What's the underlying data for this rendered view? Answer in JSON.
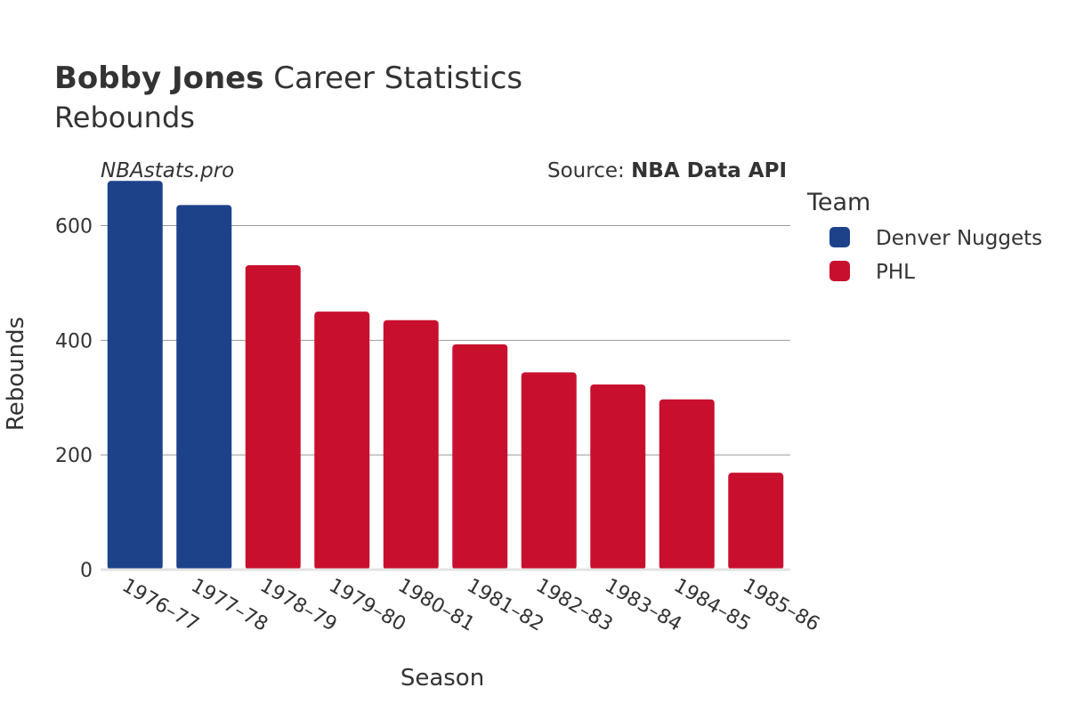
{
  "header": {
    "title_bold": "Bobby Jones",
    "title_rest": "Career Statistics",
    "subtitle": "Rebounds"
  },
  "watermark": "NBAstats.pro",
  "source": {
    "prefix": "Source: ",
    "name": "NBA Data API"
  },
  "legend": {
    "title": "Team",
    "entries": [
      {
        "label": "Denver Nuggets",
        "color": "#1d428a"
      },
      {
        "label": "PHL",
        "color": "#c8102e"
      }
    ]
  },
  "chart_data": {
    "type": "bar",
    "xlabel": "Season",
    "ylabel": "Rebounds",
    "ylim": [
      0,
      680
    ],
    "yticks": [
      0,
      200,
      400,
      600
    ],
    "grid": true,
    "legend_position": "right",
    "categories": [
      "1976–77",
      "1977–78",
      "1978–79",
      "1979–80",
      "1980–81",
      "1981–82",
      "1982–83",
      "1983–84",
      "1984–85",
      "1985–86"
    ],
    "values": [
      678,
      636,
      531,
      450,
      435,
      393,
      344,
      323,
      297,
      169
    ],
    "teams": [
      "Denver Nuggets",
      "Denver Nuggets",
      "PHL",
      "PHL",
      "PHL",
      "PHL",
      "PHL",
      "PHL",
      "PHL",
      "PHL"
    ]
  }
}
